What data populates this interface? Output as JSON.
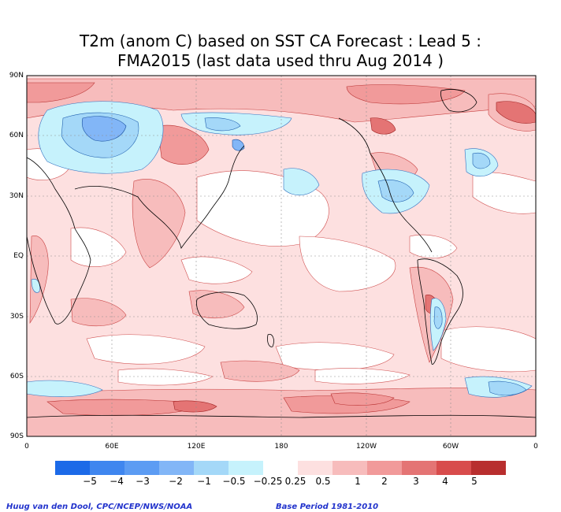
{
  "title_line1": "T2m (anom C) based on SST CA Forecast : Lead 5 :",
  "title_line2": "FMA2015 (last data used thru Aug 2014 )",
  "lat_labels": [
    "90N",
    "60N",
    "30N",
    "EQ",
    "30S",
    "60S",
    "90S"
  ],
  "lon_labels": [
    "0",
    "60E",
    "120E",
    "180",
    "120W",
    "60W",
    "0"
  ],
  "colorbar": {
    "labels": [
      "−5",
      "−4",
      "−3",
      "−2",
      "−1",
      "−0.5",
      "−0.25",
      "0.25",
      "0.5",
      "1",
      "2",
      "3",
      "4",
      "5"
    ],
    "colors": [
      "#1c6ae8",
      "#3f86ef",
      "#5c9cf3",
      "#82b6f7",
      "#a4d8f8",
      "#c6f2fc",
      "#ffffff",
      "#fde0e0",
      "#f7bcbc",
      "#f19a9a",
      "#e47474",
      "#d84c4c",
      "#b82e2e"
    ]
  },
  "credit_left": "Huug van den Dool, CPC/NCEP/NWS/NOAA",
  "credit_right": "Base Period 1981-2010"
}
